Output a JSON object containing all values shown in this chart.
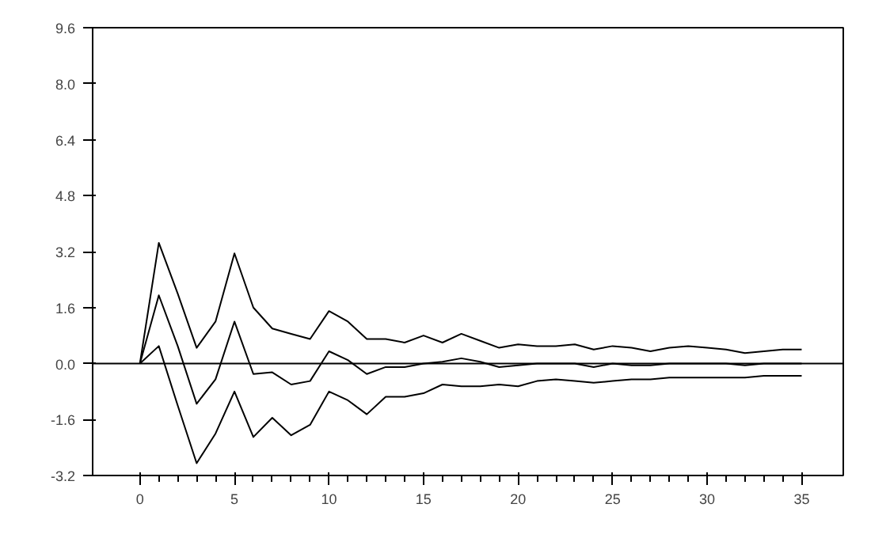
{
  "chart_data": {
    "type": "line",
    "x": [
      0,
      1,
      2,
      3,
      4,
      5,
      6,
      7,
      8,
      9,
      10,
      11,
      12,
      13,
      14,
      15,
      16,
      17,
      18,
      19,
      20,
      21,
      22,
      23,
      24,
      25,
      26,
      27,
      28,
      29,
      30,
      31,
      32,
      33,
      34,
      35
    ],
    "series": [
      {
        "color": "#000000",
        "values": [
          0,
          3.45,
          2.0,
          0.45,
          1.2,
          3.15,
          1.6,
          1.0,
          0.85,
          0.7,
          1.5,
          1.2,
          0.7,
          0.7,
          0.6,
          0.8,
          0.6,
          0.85,
          0.65,
          0.45,
          0.55,
          0.5,
          0.5,
          0.55,
          0.4,
          0.5,
          0.45,
          0.35,
          0.45,
          0.5,
          0.45,
          0.4,
          0.3,
          0.35,
          0.4,
          0.4
        ]
      },
      {
        "color": "#000000",
        "values": [
          0,
          1.95,
          0.5,
          -1.15,
          -0.45,
          1.2,
          -0.3,
          -0.25,
          -0.6,
          -0.5,
          0.35,
          0.1,
          -0.3,
          -0.1,
          -0.1,
          0,
          0.05,
          0.15,
          0.05,
          -0.1,
          -0.05,
          0,
          0,
          0,
          -0.1,
          0,
          -0.05,
          -0.05,
          0,
          0,
          0,
          0,
          -0.05,
          0,
          0,
          0
        ]
      },
      {
        "color": "#000000",
        "values": [
          0,
          0.5,
          -1.2,
          -2.85,
          -2.0,
          -0.8,
          -2.1,
          -1.55,
          -2.05,
          -1.75,
          -0.8,
          -1.05,
          -1.45,
          -0.95,
          -0.95,
          -0.85,
          -0.6,
          -0.65,
          -0.65,
          -0.6,
          -0.65,
          -0.5,
          -0.45,
          -0.5,
          -0.55,
          -0.5,
          -0.45,
          -0.45,
          -0.4,
          -0.4,
          -0.4,
          -0.4,
          -0.4,
          -0.35,
          -0.35,
          -0.35
        ]
      }
    ],
    "xlim": [
      -2.5,
      37.2
    ],
    "xticks": [
      0,
      5,
      10,
      15,
      20,
      25,
      30,
      35
    ],
    "ylim": [
      -3.2,
      9.6
    ],
    "yticks": [
      {
        "value": -3.2,
        "label": "-3.2"
      },
      {
        "value": -1.6,
        "label": "-1.6"
      },
      {
        "value": 0,
        "label": "0.0"
      },
      {
        "value": 1.6,
        "label": "1.6"
      },
      {
        "value": 3.2,
        "label": "3.2"
      },
      {
        "value": 4.8,
        "label": "4.8"
      },
      {
        "value": 6.4,
        "label": "6.4"
      },
      {
        "value": 8.0,
        "label": "8.0"
      },
      {
        "value": 9.6,
        "label": "9.6"
      }
    ],
    "ref_lines": [
      {
        "axis": "y",
        "value": 0,
        "color": "#000000"
      }
    ],
    "marker": "none",
    "line_style": "solid"
  }
}
